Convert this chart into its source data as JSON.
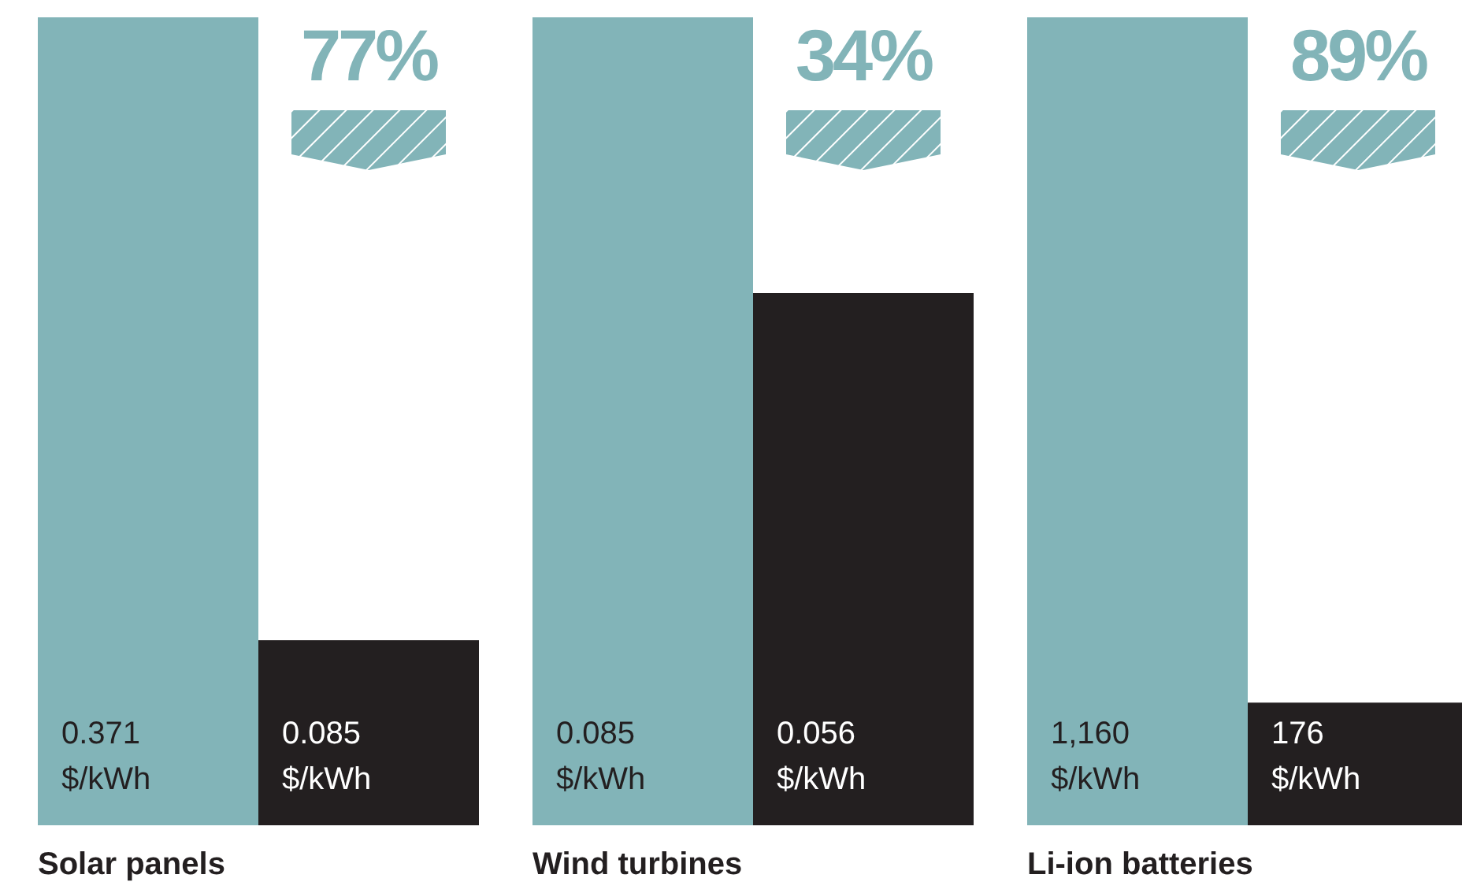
{
  "chart_data": [
    {
      "type": "bar",
      "xlabel": "Solar panels",
      "categories": [
        null,
        null
      ],
      "values": [
        0.371,
        0.085
      ],
      "colors": [
        "#82b4b8",
        "#231f20"
      ],
      "value_labels": [
        "0.371 $/kWh",
        "0.085 $/kWh"
      ],
      "annotations": [
        "77%"
      ]
    },
    {
      "type": "bar",
      "xlabel": "Wind turbines",
      "categories": [
        null,
        null
      ],
      "values": [
        0.085,
        0.056
      ],
      "colors": [
        "#82b4b8",
        "#231f20"
      ],
      "value_labels": [
        "0.085 $/kWh",
        "0.056 $/kWh"
      ],
      "annotations": [
        "34%"
      ]
    },
    {
      "type": "bar",
      "xlabel": "Li-ion batteries",
      "categories": [
        null,
        null
      ],
      "values": [
        1160,
        176
      ],
      "colors": [
        "#82b4b8",
        "#231f20"
      ],
      "value_labels": [
        "1,160 $/kWh",
        "176 $/kWh"
      ],
      "annotations": [
        "89%"
      ]
    }
  ]
}
